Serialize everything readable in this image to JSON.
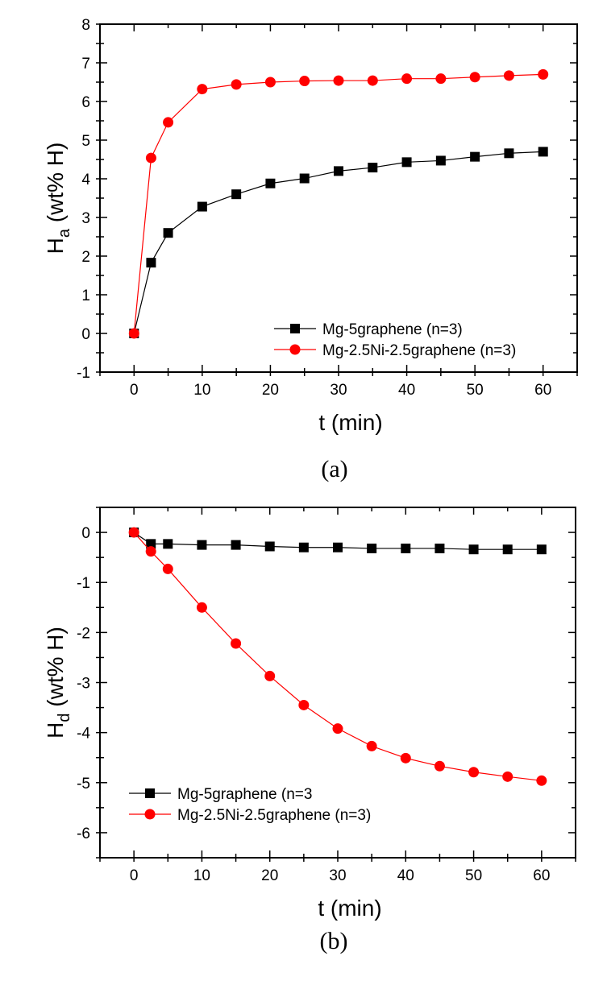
{
  "colors": {
    "series1": "#000000",
    "series2": "#ff0000"
  },
  "chart_data": [
    {
      "type": "line",
      "caption": "(a)",
      "xlabel": "t (min)",
      "ylabel_main": "H",
      "ylabel_sub": "a",
      "ylabel_rest": " (wt% H)",
      "xlim": [
        -5,
        65
      ],
      "ylim": [
        -1,
        8
      ],
      "xticks": [
        0,
        10,
        20,
        30,
        40,
        50,
        60
      ],
      "yticks": [
        -1,
        0,
        1,
        2,
        3,
        4,
        5,
        6,
        7,
        8
      ],
      "grid": false,
      "legend_position": "bottom-right",
      "x": [
        0,
        2.5,
        5,
        10,
        15,
        20,
        25,
        30,
        35,
        40,
        45,
        50,
        55,
        60
      ],
      "series": [
        {
          "name": "Mg-5graphene (n=3)",
          "marker": "square",
          "color": "#000000",
          "values": [
            0,
            1.83,
            2.6,
            3.28,
            3.6,
            3.88,
            4.01,
            4.2,
            4.29,
            4.43,
            4.47,
            4.57,
            4.66,
            4.7
          ]
        },
        {
          "name": "Mg-2.5Ni-2.5graphene (n=3)",
          "marker": "circle",
          "color": "#ff0000",
          "values": [
            0,
            4.54,
            5.46,
            6.32,
            6.44,
            6.5,
            6.53,
            6.54,
            6.54,
            6.59,
            6.59,
            6.63,
            6.67,
            6.7
          ]
        }
      ]
    },
    {
      "type": "line",
      "caption": "(b)",
      "xlabel": "t (min)",
      "ylabel_main": "H",
      "ylabel_sub": "d",
      "ylabel_rest": " (wt% H)",
      "xlim": [
        -5,
        65
      ],
      "ylim": [
        -6.5,
        0.5
      ],
      "xticks": [
        0,
        10,
        20,
        30,
        40,
        50,
        60
      ],
      "yticks": [
        -6,
        -5,
        -4,
        -3,
        -2,
        -1,
        0
      ],
      "grid": false,
      "legend_position": "bottom-left",
      "x": [
        0,
        2.5,
        5,
        10,
        15,
        20,
        25,
        30,
        35,
        40,
        45,
        50,
        55,
        60
      ],
      "series": [
        {
          "name": "Mg-5graphene (n=3",
          "marker": "square",
          "color": "#000000",
          "values": [
            0,
            -0.23,
            -0.23,
            -0.25,
            -0.25,
            -0.28,
            -0.3,
            -0.3,
            -0.32,
            -0.32,
            -0.32,
            -0.34,
            -0.34,
            -0.34
          ]
        },
        {
          "name": "Mg-2.5Ni-2.5graphene (n=3)",
          "marker": "circle",
          "color": "#ff0000",
          "values": [
            0,
            -0.38,
            -0.73,
            -1.5,
            -2.22,
            -2.87,
            -3.45,
            -3.92,
            -4.27,
            -4.51,
            -4.67,
            -4.79,
            -4.88,
            -4.96
          ]
        }
      ]
    }
  ]
}
